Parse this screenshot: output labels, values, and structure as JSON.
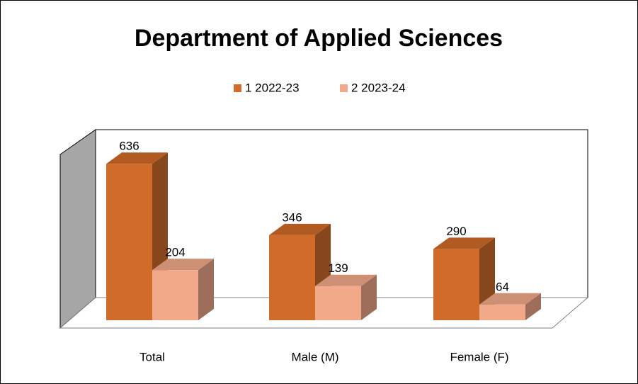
{
  "chart_data": {
    "type": "bar3d",
    "title": "Department of Applied Sciences",
    "categories": [
      "Total",
      "Male (M)",
      "Female (F)"
    ],
    "series": [
      {
        "name": "1 2022-23",
        "color": "#d06b29",
        "values": [
          636,
          346,
          290
        ]
      },
      {
        "name": "2 2023-24",
        "color": "#f2a98a",
        "values": [
          204,
          139,
          64
        ]
      }
    ],
    "ylim": [
      0,
      700
    ],
    "legend": "top"
  }
}
